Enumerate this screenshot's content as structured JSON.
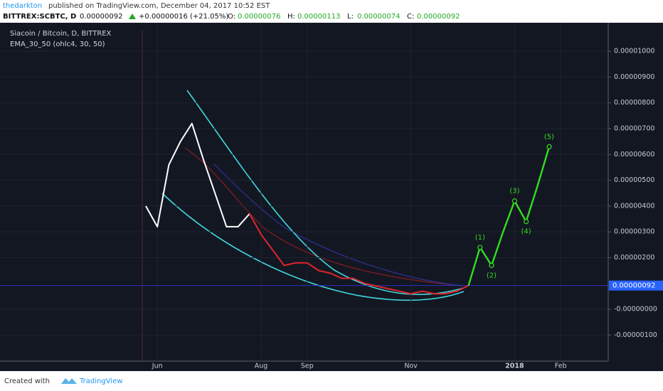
{
  "header": {
    "author": "thedarkton",
    "published": "published on TradingView.com, December 04, 2017 10:52 EST",
    "symbol": "BITTREX:SCBTC, D",
    "price": "0.00000092",
    "change": "+0.00000016 (+21.05%)",
    "ohlc": [
      {
        "label": "O:",
        "value": "0.00000076"
      },
      {
        "label": "H:",
        "value": "0.00000113"
      },
      {
        "label": "L:",
        "value": "0.00000074"
      },
      {
        "label": "C:",
        "value": "0.00000092"
      }
    ]
  },
  "chart_data": {
    "type": "line",
    "title": "Siacoin / Bitcoin, D, BITTREX",
    "subtitle": "EMA_30_50 (ohlc4, 30, 50)",
    "categories": [
      null,
      "Jun",
      null,
      null,
      null,
      null,
      null,
      null,
      null,
      null,
      "Aug",
      null,
      null,
      null,
      "Sep",
      null,
      null,
      null,
      null,
      null,
      null,
      null,
      null,
      "Nov",
      null,
      null,
      null,
      null,
      null,
      null,
      null,
      null,
      "2018",
      null,
      null,
      null,
      "Feb"
    ],
    "series": [
      {
        "color": "#ffffff",
        "values": [
          4e-06,
          3.2e-06,
          5.6e-06,
          6.5e-06,
          7.2e-06,
          5.8e-06,
          4.5e-06,
          3.2e-06,
          3.2e-06,
          3.7e-06,
          null,
          null,
          null,
          null,
          null,
          null,
          null,
          null,
          null,
          null,
          null,
          null,
          null,
          null,
          null,
          null,
          null,
          null,
          null,
          null,
          null,
          null,
          null,
          null,
          null,
          null,
          null
        ]
      },
      {
        "color": "#e0242c",
        "values": [
          null,
          null,
          null,
          null,
          null,
          null,
          null,
          null,
          null,
          3.7e-06,
          2.9e-06,
          2.3e-06,
          1.7e-06,
          1.8e-06,
          1.8e-06,
          1.5e-06,
          1.4e-06,
          1.2e-06,
          1.2e-06,
          1e-06,
          9e-07,
          8e-07,
          7e-07,
          6e-07,
          7e-07,
          6e-07,
          6e-07,
          7e-07,
          9.2e-07,
          null,
          null,
          null,
          null,
          null,
          null,
          null,
          null
        ]
      },
      {
        "color": "#33dd22",
        "values": [
          null,
          null,
          null,
          null,
          null,
          null,
          null,
          null,
          null,
          null,
          null,
          null,
          null,
          null,
          null,
          null,
          null,
          null,
          null,
          null,
          null,
          null,
          null,
          null,
          null,
          null,
          null,
          null,
          9.2e-07,
          2.4e-06,
          1.7e-06,
          3e-06,
          4.2e-06,
          3.4e-06,
          4.8e-06,
          6.3e-06,
          null
        ]
      }
    ],
    "wave_labels": [
      "(1)",
      "(2)",
      "(3)",
      "(4)",
      "(5)"
    ],
    "last_price": {
      "value": 9.2e-07,
      "label": "0.00000092"
    },
    "ylim": [
      -2.01e-06,
      1.094e-05
    ],
    "yticks": [
      {
        "value": 1e-05,
        "label": "0.00001000"
      },
      {
        "value": 9e-06,
        "label": "0.00000900"
      },
      {
        "value": 8e-06,
        "label": "0.00000800"
      },
      {
        "value": 7e-06,
        "label": "0.00000700"
      },
      {
        "value": 6e-06,
        "label": "0.00000600"
      },
      {
        "value": 5e-06,
        "label": "0.00000500"
      },
      {
        "value": 4e-06,
        "label": "0.00000400"
      },
      {
        "value": 3e-06,
        "label": "0.00000300"
      },
      {
        "value": 2e-06,
        "label": "0.00000200"
      },
      {
        "value": 0,
        "label": "-0.00000000"
      },
      {
        "value": -1e-06,
        "label": "-0.00000100"
      }
    ],
    "grid": true
  },
  "footer": {
    "created": "Created with",
    "brand": "TradingView"
  }
}
